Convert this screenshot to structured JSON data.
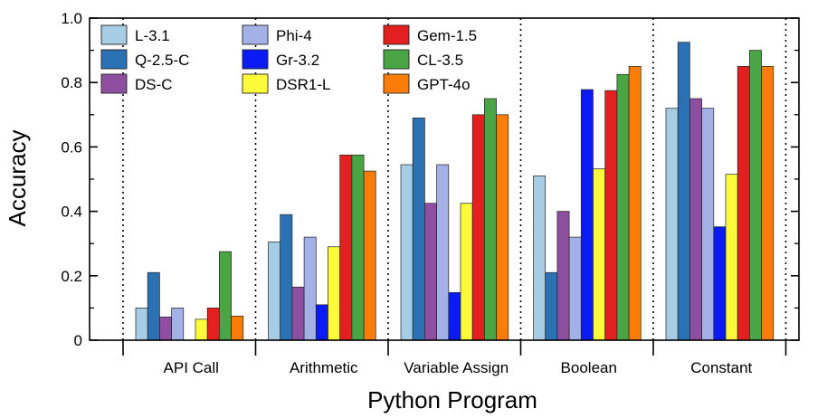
{
  "chart_data": {
    "type": "bar",
    "title": "",
    "xlabel": "Python Program",
    "ylabel": "Accuracy",
    "ylim": [
      0,
      1.0
    ],
    "yticks": [
      "0",
      "0.2",
      "0.4",
      "0.6",
      "0.8",
      "1.0"
    ],
    "grid": false,
    "legend_position": "top-left",
    "categories": [
      "API Call",
      "Arithmetic",
      "Variable Assign",
      "Boolean",
      "Constant"
    ],
    "series": [
      {
        "name": "L-3.1",
        "color": "#a6cde3",
        "values": [
          0.1,
          0.305,
          0.545,
          0.51,
          0.72
        ]
      },
      {
        "name": "Q-2.5-C",
        "color": "#2b72b4",
        "values": [
          0.21,
          0.39,
          0.69,
          0.21,
          0.925
        ]
      },
      {
        "name": "DS-C",
        "color": "#8e4fa1",
        "values": [
          0.072,
          0.165,
          0.425,
          0.4,
          0.75
        ]
      },
      {
        "name": "Phi-4",
        "color": "#a4b1e6",
        "values": [
          0.1,
          0.32,
          0.545,
          0.32,
          0.72
        ]
      },
      {
        "name": "Gr-3.2",
        "color": "#0a1bf5",
        "values": [
          0.0,
          0.11,
          0.148,
          0.778,
          0.352
        ]
      },
      {
        "name": "DSR1-L",
        "color": "#fdfa3a",
        "values": [
          0.065,
          0.29,
          0.425,
          0.532,
          0.515
        ]
      },
      {
        "name": "Gem-1.5",
        "color": "#e3201f",
        "values": [
          0.1,
          0.575,
          0.7,
          0.775,
          0.85
        ]
      },
      {
        "name": "CL-3.5",
        "color": "#4aa544",
        "values": [
          0.275,
          0.575,
          0.75,
          0.825,
          0.9
        ]
      },
      {
        "name": "GPT-4o",
        "color": "#fb7d08",
        "values": [
          0.075,
          0.525,
          0.7,
          0.85,
          0.85
        ]
      }
    ]
  }
}
